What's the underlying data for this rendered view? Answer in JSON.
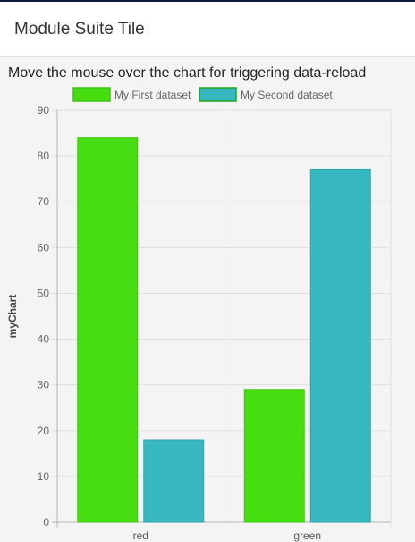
{
  "header": {
    "title": "Module Suite Tile"
  },
  "tile": {
    "subtitle": "Move the mouse over the chart for triggering data-reload"
  },
  "colors": {
    "series1_fill": "#46de10",
    "series1_border": "#3fc60e",
    "series2_fill": "#37b8c0",
    "series2_border": "#2fa5ac",
    "legend2_border": "#1fa51f"
  },
  "chart_data": {
    "type": "bar",
    "categories": [
      "red",
      "green"
    ],
    "series": [
      {
        "name": "My First dataset",
        "values": [
          84,
          29
        ]
      },
      {
        "name": "My Second dataset",
        "values": [
          18,
          77
        ]
      }
    ],
    "ylabel": "myChart",
    "ylim": [
      0,
      90
    ],
    "yticks": [
      0,
      10,
      20,
      30,
      40,
      50,
      60,
      70,
      80,
      90
    ],
    "grid": true,
    "legend": "top"
  }
}
